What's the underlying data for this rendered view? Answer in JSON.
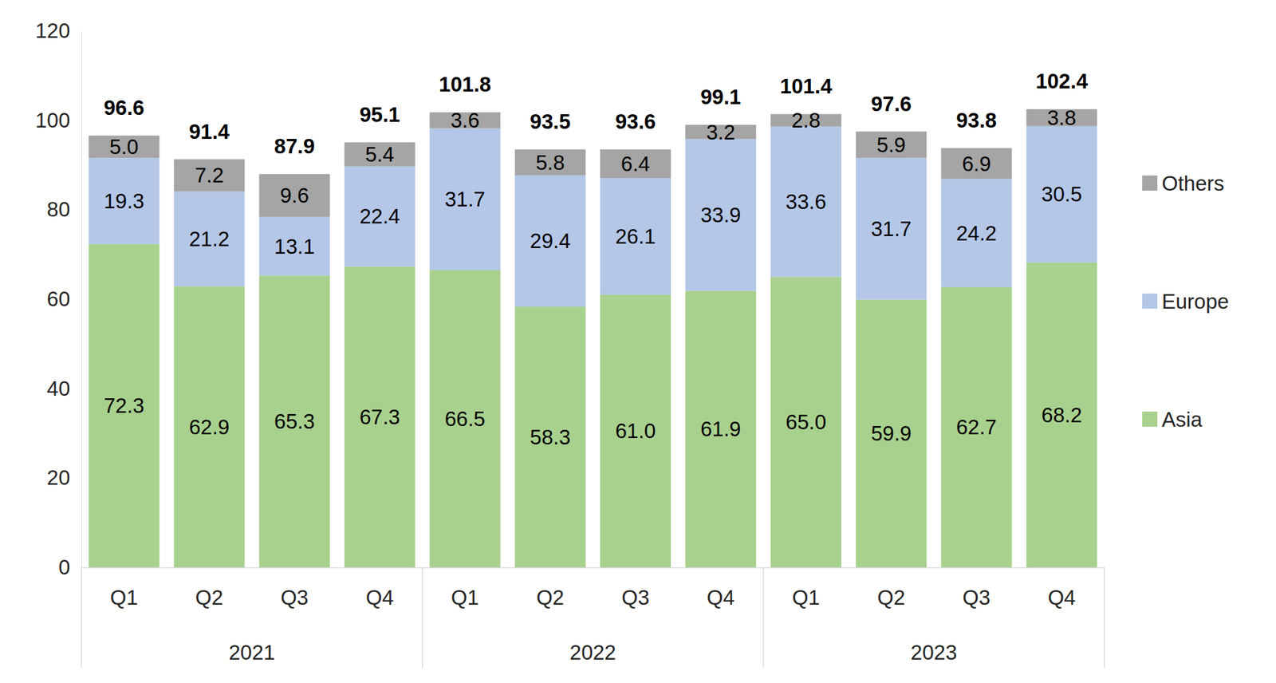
{
  "chart_data": {
    "type": "bar",
    "stacked": true,
    "data_labels": true,
    "legend": "right",
    "grid": false,
    "groups": [
      {
        "label": "2021",
        "categories": [
          "Q1",
          "Q2",
          "Q3",
          "Q4"
        ]
      },
      {
        "label": "2022",
        "categories": [
          "Q1",
          "Q2",
          "Q3",
          "Q4"
        ]
      },
      {
        "label": "2023",
        "categories": [
          "Q1",
          "Q2",
          "Q3",
          "Q4"
        ]
      }
    ],
    "series": [
      {
        "name": "Asia",
        "color": "#a9d18e",
        "values": [
          72.3,
          62.9,
          65.3,
          67.3,
          66.5,
          58.3,
          61.0,
          61.9,
          65.0,
          59.9,
          62.7,
          68.2
        ],
        "value_labels": [
          "72.3",
          "62.9",
          "65.3",
          "67.3",
          "66.5",
          "58.3",
          "61.0",
          "61.9",
          "65.0",
          "59.9",
          "62.7",
          "68.2"
        ]
      },
      {
        "name": "Europe",
        "color": "#b4c7e7",
        "values": [
          19.3,
          21.2,
          13.1,
          22.4,
          31.7,
          29.4,
          26.1,
          33.9,
          33.6,
          31.7,
          24.2,
          30.5
        ],
        "value_labels": [
          "19.3",
          "21.2",
          "13.1",
          "22.4",
          "31.7",
          "29.4",
          "26.1",
          "33.9",
          "33.6",
          "31.7",
          "24.2",
          "30.5"
        ]
      },
      {
        "name": "Others",
        "color": "#a5a5a5",
        "values": [
          5.0,
          7.2,
          9.6,
          5.4,
          3.6,
          5.8,
          6.4,
          3.2,
          2.8,
          5.9,
          6.9,
          3.8
        ],
        "value_labels": [
          "5.0",
          "7.2",
          "9.6",
          "5.4",
          "3.6",
          "5.8",
          "6.4",
          "3.2",
          "2.8",
          "5.9",
          "6.9",
          "3.8"
        ]
      }
    ],
    "totals": [
      96.6,
      91.4,
      87.9,
      95.1,
      101.8,
      93.5,
      93.6,
      99.1,
      101.4,
      97.6,
      93.8,
      102.4
    ],
    "ylim": [
      0,
      120
    ],
    "yticks": [
      0,
      20,
      40,
      60,
      80,
      100,
      120
    ]
  }
}
